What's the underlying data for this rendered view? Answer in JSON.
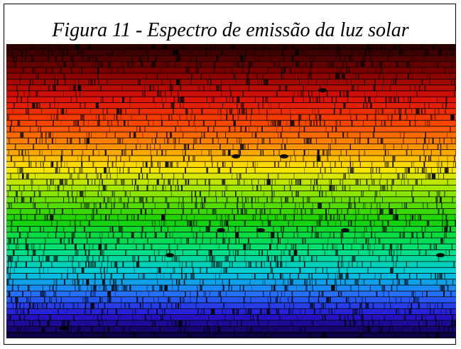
{
  "figure": {
    "caption": "Figura 11 - Espectro de emissão da luz solar",
    "image_kind": "solar-spectrum-echelle",
    "palette": {
      "dark_red": "#3a0400",
      "red": "#d41006",
      "orange": "#ff8a00",
      "yellow": "#ffe100",
      "green": "#1fd400",
      "cyan_green": "#00e088",
      "cyan": "#00c8d0",
      "blue": "#1f66ff",
      "violet": "#2a13cc",
      "dark_violet": "#150062"
    }
  }
}
